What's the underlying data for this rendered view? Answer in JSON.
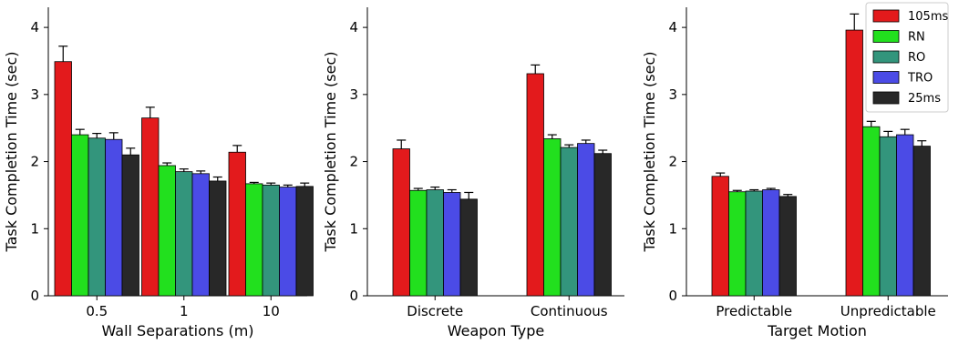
{
  "chart_data": [
    {
      "type": "bar",
      "xlabel": "Wall Separations (m)",
      "ylabel": "Task Completion Time (sec)",
      "ylim": [
        0,
        4.3
      ],
      "yticks": [
        0,
        1,
        2,
        3,
        4
      ],
      "categories": [
        "0.5",
        "1",
        "10"
      ],
      "series": [
        {
          "name": "105ms",
          "values": [
            3.49,
            2.65,
            2.14
          ],
          "errors": [
            0.23,
            0.16,
            0.1
          ]
        },
        {
          "name": "RN",
          "values": [
            2.4,
            1.94,
            1.67
          ],
          "errors": [
            0.08,
            0.04,
            0.02
          ]
        },
        {
          "name": "RO",
          "values": [
            2.35,
            1.85,
            1.65
          ],
          "errors": [
            0.07,
            0.04,
            0.03
          ]
        },
        {
          "name": "TRO",
          "values": [
            2.33,
            1.82,
            1.62
          ],
          "errors": [
            0.1,
            0.04,
            0.03
          ]
        },
        {
          "name": "25ms",
          "values": [
            2.1,
            1.71,
            1.63
          ],
          "errors": [
            0.1,
            0.06,
            0.05
          ]
        }
      ]
    },
    {
      "type": "bar",
      "xlabel": "Weapon Type",
      "ylabel": "Task Completion Time (sec)",
      "ylim": [
        0,
        4.3
      ],
      "yticks": [
        0,
        1,
        2,
        3,
        4
      ],
      "categories": [
        "Discrete",
        "Continuous"
      ],
      "series": [
        {
          "name": "105ms",
          "values": [
            2.19,
            3.31
          ],
          "errors": [
            0.13,
            0.13
          ]
        },
        {
          "name": "RN",
          "values": [
            1.57,
            2.34
          ],
          "errors": [
            0.03,
            0.06
          ]
        },
        {
          "name": "RO",
          "values": [
            1.58,
            2.21
          ],
          "errors": [
            0.04,
            0.04
          ]
        },
        {
          "name": "TRO",
          "values": [
            1.54,
            2.27
          ],
          "errors": [
            0.04,
            0.05
          ]
        },
        {
          "name": "25ms",
          "values": [
            1.44,
            2.12
          ],
          "errors": [
            0.1,
            0.05
          ]
        }
      ]
    },
    {
      "type": "bar",
      "xlabel": "Target Motion",
      "ylabel": "Task Completion Time (sec)",
      "ylim": [
        0,
        4.3
      ],
      "yticks": [
        0,
        1,
        2,
        3,
        4
      ],
      "categories": [
        "Predictable",
        "Unpredictable"
      ],
      "legend_position": "top-right",
      "series": [
        {
          "name": "105ms",
          "values": [
            1.78,
            3.96
          ],
          "errors": [
            0.05,
            0.24
          ]
        },
        {
          "name": "RN",
          "values": [
            1.55,
            2.52
          ],
          "errors": [
            0.02,
            0.08
          ]
        },
        {
          "name": "RO",
          "values": [
            1.56,
            2.37
          ],
          "errors": [
            0.02,
            0.08
          ]
        },
        {
          "name": "TRO",
          "values": [
            1.58,
            2.4
          ],
          "errors": [
            0.02,
            0.08
          ]
        },
        {
          "name": "25ms",
          "values": [
            1.48,
            2.23
          ],
          "errors": [
            0.03,
            0.08
          ]
        }
      ]
    }
  ],
  "series_colors": {
    "105ms": "#e31a1c",
    "RN": "#22e01e",
    "RO": "#33957c",
    "TRO": "#4b4be6",
    "25ms": "#282828"
  },
  "legend": {
    "position": "top-right",
    "entries": [
      "105ms",
      "RN",
      "RO",
      "TRO",
      "25ms"
    ]
  }
}
